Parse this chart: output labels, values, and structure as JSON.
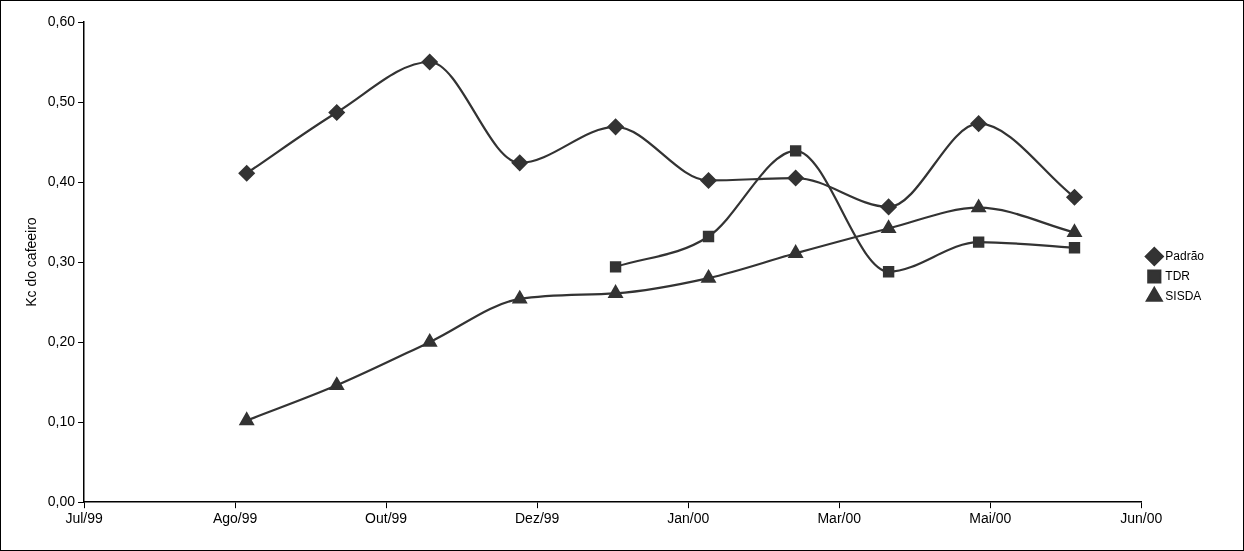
{
  "chart_data": {
    "type": "line",
    "ylabel": "Kc do cafeeiro",
    "x": [
      "1999-08-26",
      "1999-09-26",
      "1999-10-28",
      "1999-11-28",
      "1999-12-31",
      "2000-02-01",
      "2000-03-02",
      "2000-04-03",
      "2000-05-04",
      "2000-06-06"
    ],
    "series": [
      {
        "name": "Padrão",
        "color": "#333333",
        "marker": "diamond",
        "values": [
          0.411,
          0.487,
          0.55,
          0.424,
          0.469,
          0.402,
          0.405,
          0.369,
          0.473,
          0.381
        ]
      },
      {
        "name": "TDR",
        "color": "#333333",
        "marker": "square",
        "x": [
          "1999-12-31",
          "2000-02-01",
          "2000-03-02",
          "2000-04-03",
          "2000-05-04",
          "2000-06-06"
        ],
        "values": [
          0.294,
          0.332,
          0.439,
          0.288,
          0.325,
          0.318
        ]
      },
      {
        "name": "SISDA",
        "color": "#333333",
        "marker": "triangle",
        "values": [
          0.102,
          0.146,
          0.2,
          0.254,
          0.261,
          0.28,
          0.311,
          0.342,
          0.368,
          0.337
        ]
      }
    ],
    "xlim": [
      "1999-07-01",
      "2000-06-29"
    ],
    "xticks": [
      {
        "value": "1999-07-01",
        "label": "Jul/99"
      },
      {
        "value": "1999-08-22",
        "label": "Ago/99"
      },
      {
        "value": "1999-10-13",
        "label": "Out/99"
      },
      {
        "value": "1999-12-04",
        "label": "Dez/99"
      },
      {
        "value": "2000-01-25",
        "label": "Jan/00"
      },
      {
        "value": "2000-03-17",
        "label": "Mar/00"
      },
      {
        "value": "2000-05-08",
        "label": "Mai/00"
      },
      {
        "value": "2000-06-29",
        "label": "Jun/00"
      }
    ],
    "ylim": [
      0,
      0.6
    ],
    "yticks": [
      {
        "value": 0,
        "label": "0,00"
      },
      {
        "value": 0.1,
        "label": "0,10"
      },
      {
        "value": 0.2,
        "label": "0,20"
      },
      {
        "value": 0.3,
        "label": "0,30"
      },
      {
        "value": 0.4,
        "label": "0,40"
      },
      {
        "value": 0.5,
        "label": "0,50"
      },
      {
        "value": 0.6,
        "label": "0,60"
      }
    ],
    "grid": false,
    "legend": "right",
    "line_style": "solid"
  }
}
